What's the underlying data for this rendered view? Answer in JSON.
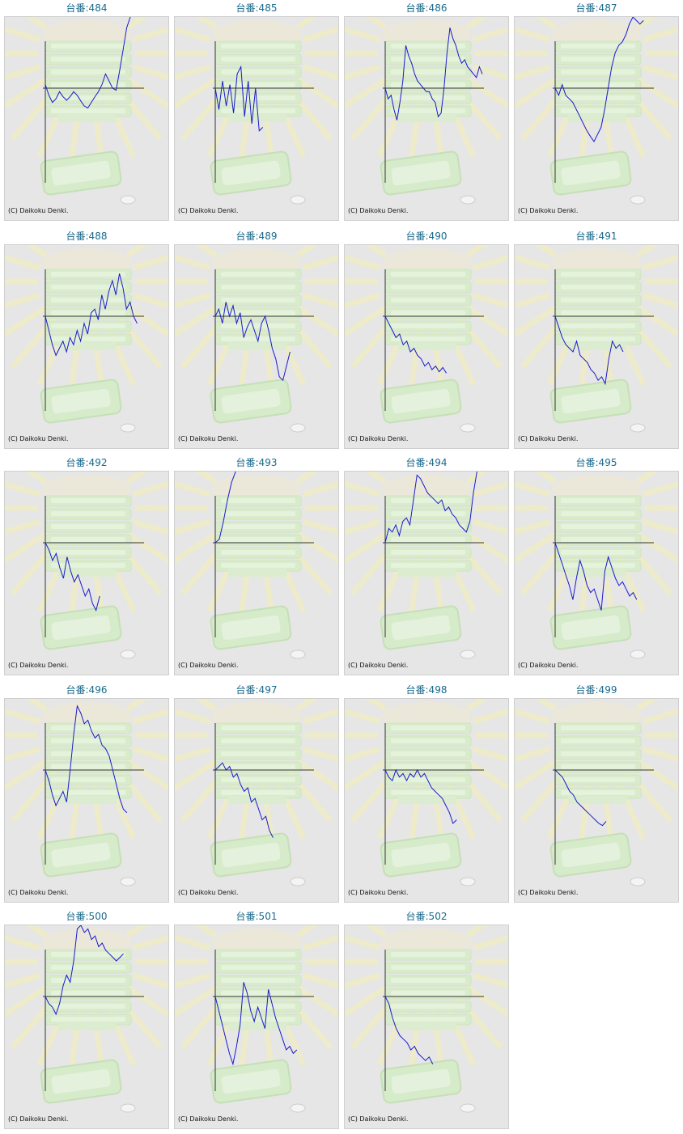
{
  "copyright": "(C) Daikoku Denki.",
  "label_prefix": "台番:",
  "colors": {
    "line": "#1a1acc",
    "axis": "#333333",
    "label": "#1a6a8c",
    "background": "#e6e6e6"
  },
  "chart_data": [
    {
      "type": "line",
      "id": "484",
      "values": [
        0.05,
        -0.1,
        -0.2,
        -0.15,
        -0.05,
        -0.12,
        -0.17,
        -0.12,
        -0.05,
        -0.1,
        -0.18,
        -0.25,
        -0.28,
        -0.2,
        -0.12,
        -0.05,
        0.05,
        0.2,
        0.1,
        0.0,
        -0.03,
        0.25,
        0.55,
        0.85,
        1.0
      ]
    },
    {
      "type": "line",
      "id": "485",
      "values": [
        0,
        -0.3,
        0.1,
        -0.25,
        0.05,
        -0.35,
        0.2,
        0.3,
        -0.4,
        0.1,
        -0.5,
        0.0,
        -0.6,
        -0.55
      ]
    },
    {
      "type": "line",
      "id": "486",
      "values": [
        0,
        -0.15,
        -0.1,
        -0.3,
        -0.45,
        -0.2,
        0.1,
        0.6,
        0.45,
        0.35,
        0.2,
        0.1,
        0.05,
        0.0,
        -0.05,
        -0.05,
        -0.15,
        -0.2,
        -0.4,
        -0.35,
        0.0,
        0.5,
        0.85,
        0.7,
        0.6,
        0.45,
        0.35,
        0.4,
        0.3,
        0.25,
        0.2,
        0.15,
        0.3,
        0.2
      ]
    },
    {
      "type": "line",
      "id": "487",
      "values": [
        0,
        -0.1,
        0.05,
        -0.1,
        -0.15,
        -0.2,
        -0.3,
        -0.4,
        -0.5,
        -0.6,
        -0.68,
        -0.75,
        -0.65,
        -0.55,
        -0.3,
        0.0,
        0.3,
        0.5,
        0.6,
        0.65,
        0.75,
        0.9,
        1.0,
        0.95,
        0.9,
        0.95
      ]
    },
    {
      "type": "line",
      "id": "488",
      "values": [
        0,
        -0.2,
        -0.4,
        -0.55,
        -0.45,
        -0.35,
        -0.5,
        -0.3,
        -0.4,
        -0.2,
        -0.35,
        -0.1,
        -0.25,
        0.05,
        0.1,
        -0.05,
        0.3,
        0.1,
        0.35,
        0.5,
        0.3,
        0.6,
        0.4,
        0.1,
        0.2,
        0.0,
        -0.1
      ]
    },
    {
      "type": "line",
      "id": "489",
      "values": [
        0,
        0.1,
        -0.1,
        0.2,
        0.0,
        0.15,
        -0.1,
        0.05,
        -0.3,
        -0.15,
        -0.05,
        -0.2,
        -0.35,
        -0.1,
        0.0,
        -0.2,
        -0.45,
        -0.6,
        -0.85,
        -0.9,
        -0.7,
        -0.5
      ]
    },
    {
      "type": "line",
      "id": "490",
      "values": [
        0,
        -0.1,
        -0.2,
        -0.3,
        -0.25,
        -0.4,
        -0.35,
        -0.5,
        -0.45,
        -0.55,
        -0.6,
        -0.7,
        -0.65,
        -0.75,
        -0.7,
        -0.78,
        -0.72,
        -0.8
      ]
    },
    {
      "type": "line",
      "id": "491",
      "values": [
        0,
        -0.15,
        -0.3,
        -0.4,
        -0.45,
        -0.5,
        -0.35,
        -0.55,
        -0.6,
        -0.65,
        -0.75,
        -0.8,
        -0.9,
        -0.85,
        -0.95,
        -0.6,
        -0.35,
        -0.45,
        -0.4,
        -0.5
      ]
    },
    {
      "type": "line",
      "id": "492",
      "values": [
        0,
        -0.1,
        -0.25,
        -0.15,
        -0.35,
        -0.5,
        -0.2,
        -0.4,
        -0.55,
        -0.45,
        -0.6,
        -0.75,
        -0.65,
        -0.85,
        -0.95,
        -0.75
      ]
    },
    {
      "type": "line",
      "id": "493",
      "values": [
        0,
        0.05,
        0.3,
        0.6,
        0.85,
        1.0
      ]
    },
    {
      "type": "line",
      "id": "494",
      "values": [
        0,
        0.2,
        0.15,
        0.25,
        0.1,
        0.3,
        0.35,
        0.25,
        0.6,
        0.95,
        0.9,
        0.8,
        0.7,
        0.65,
        0.6,
        0.55,
        0.6,
        0.45,
        0.5,
        0.4,
        0.35,
        0.25,
        0.2,
        0.15,
        0.3,
        0.7,
        1.0
      ]
    },
    {
      "type": "line",
      "id": "495",
      "values": [
        0,
        -0.15,
        -0.3,
        -0.45,
        -0.6,
        -0.8,
        -0.5,
        -0.25,
        -0.4,
        -0.6,
        -0.7,
        -0.65,
        -0.8,
        -0.95,
        -0.4,
        -0.2,
        -0.35,
        -0.5,
        -0.6,
        -0.55,
        -0.65,
        -0.75,
        -0.7,
        -0.8
      ]
    },
    {
      "type": "line",
      "id": "496",
      "values": [
        0,
        -0.15,
        -0.35,
        -0.5,
        -0.4,
        -0.3,
        -0.45,
        0.0,
        0.5,
        0.9,
        0.8,
        0.65,
        0.7,
        0.55,
        0.45,
        0.5,
        0.35,
        0.3,
        0.2,
        0.0,
        -0.2,
        -0.4,
        -0.55,
        -0.6
      ]
    },
    {
      "type": "line",
      "id": "497",
      "values": [
        0,
        0.05,
        0.1,
        0.0,
        0.05,
        -0.1,
        -0.05,
        -0.2,
        -0.3,
        -0.25,
        -0.45,
        -0.4,
        -0.55,
        -0.7,
        -0.65,
        -0.85,
        -0.95
      ]
    },
    {
      "type": "line",
      "id": "498",
      "values": [
        0,
        -0.1,
        -0.15,
        0.0,
        -0.1,
        -0.05,
        -0.15,
        -0.05,
        -0.1,
        0.0,
        -0.1,
        -0.05,
        -0.15,
        -0.25,
        -0.3,
        -0.35,
        -0.4,
        -0.5,
        -0.6,
        -0.75,
        -0.7
      ]
    },
    {
      "type": "line",
      "id": "499",
      "values": [
        0,
        -0.05,
        -0.1,
        -0.2,
        -0.3,
        -0.35,
        -0.45,
        -0.5,
        -0.55,
        -0.6,
        -0.65,
        -0.7,
        -0.75,
        -0.78,
        -0.72
      ]
    },
    {
      "type": "line",
      "id": "500",
      "values": [
        0,
        -0.1,
        -0.15,
        -0.25,
        -0.1,
        0.15,
        0.3,
        0.2,
        0.5,
        0.95,
        1.0,
        0.9,
        0.95,
        0.8,
        0.85,
        0.7,
        0.75,
        0.65,
        0.6,
        0.55,
        0.5,
        0.55,
        0.6
      ]
    },
    {
      "type": "line",
      "id": "501",
      "values": [
        0,
        -0.2,
        -0.4,
        -0.6,
        -0.8,
        -0.95,
        -0.7,
        -0.4,
        0.2,
        0.05,
        -0.2,
        -0.35,
        -0.15,
        -0.3,
        -0.45,
        0.1,
        -0.1,
        -0.3,
        -0.45,
        -0.6,
        -0.75,
        -0.7,
        -0.8,
        -0.75
      ]
    },
    {
      "type": "line",
      "id": "502",
      "values": [
        0,
        -0.1,
        -0.3,
        -0.45,
        -0.55,
        -0.6,
        -0.65,
        -0.75,
        -0.7,
        -0.8,
        -0.85,
        -0.9,
        -0.85,
        -0.95
      ]
    }
  ]
}
